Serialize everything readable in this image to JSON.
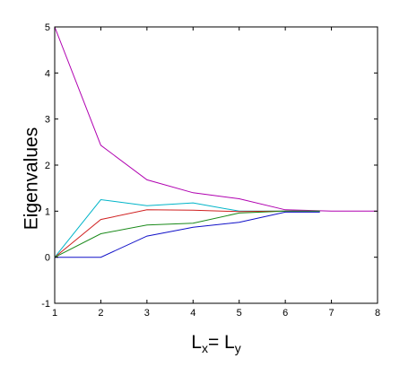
{
  "chart_data": {
    "type": "line",
    "title": "",
    "xlabel": "Lx= Ly",
    "xlabel_parts": {
      "a": "L",
      "a_sub": "x",
      "eq": "= ",
      "b": "L",
      "b_sub": "y"
    },
    "ylabel": "Eigenvalues",
    "xlim": [
      1,
      8
    ],
    "ylim": [
      -1,
      5
    ],
    "xticks": [
      1,
      2,
      3,
      4,
      5,
      6,
      7,
      8
    ],
    "yticks": [
      -1,
      0,
      1,
      2,
      3,
      4,
      5
    ],
    "grid": false,
    "legend": "none",
    "series": [
      {
        "color": "#b000b0",
        "x": [
          1,
          2,
          3,
          4,
          5,
          6,
          7,
          8
        ],
        "y": [
          5.0,
          2.43,
          1.68,
          1.4,
          1.27,
          1.03,
          1.0,
          1.0
        ]
      },
      {
        "color": "#00b4c8",
        "x": [
          1,
          2,
          3,
          4,
          5,
          6,
          6.75
        ],
        "y": [
          0.0,
          1.25,
          1.12,
          1.18,
          1.0,
          1.0,
          1.0
        ]
      },
      {
        "color": "#d02020",
        "x": [
          1,
          2,
          3,
          4,
          5,
          6,
          6.75
        ],
        "y": [
          0.0,
          0.82,
          1.03,
          1.02,
          0.99,
          1.0,
          1.0
        ]
      },
      {
        "color": "#1a8a1a",
        "x": [
          1,
          2,
          3,
          4,
          5,
          6,
          6.75
        ],
        "y": [
          0.0,
          0.51,
          0.7,
          0.74,
          0.96,
          1.0,
          1.0
        ]
      },
      {
        "color": "#1010c8",
        "x": [
          1,
          2,
          3,
          4,
          5,
          6,
          6.75
        ],
        "y": [
          0.0,
          0.0,
          0.46,
          0.65,
          0.76,
          0.98,
          0.98
        ]
      }
    ]
  }
}
